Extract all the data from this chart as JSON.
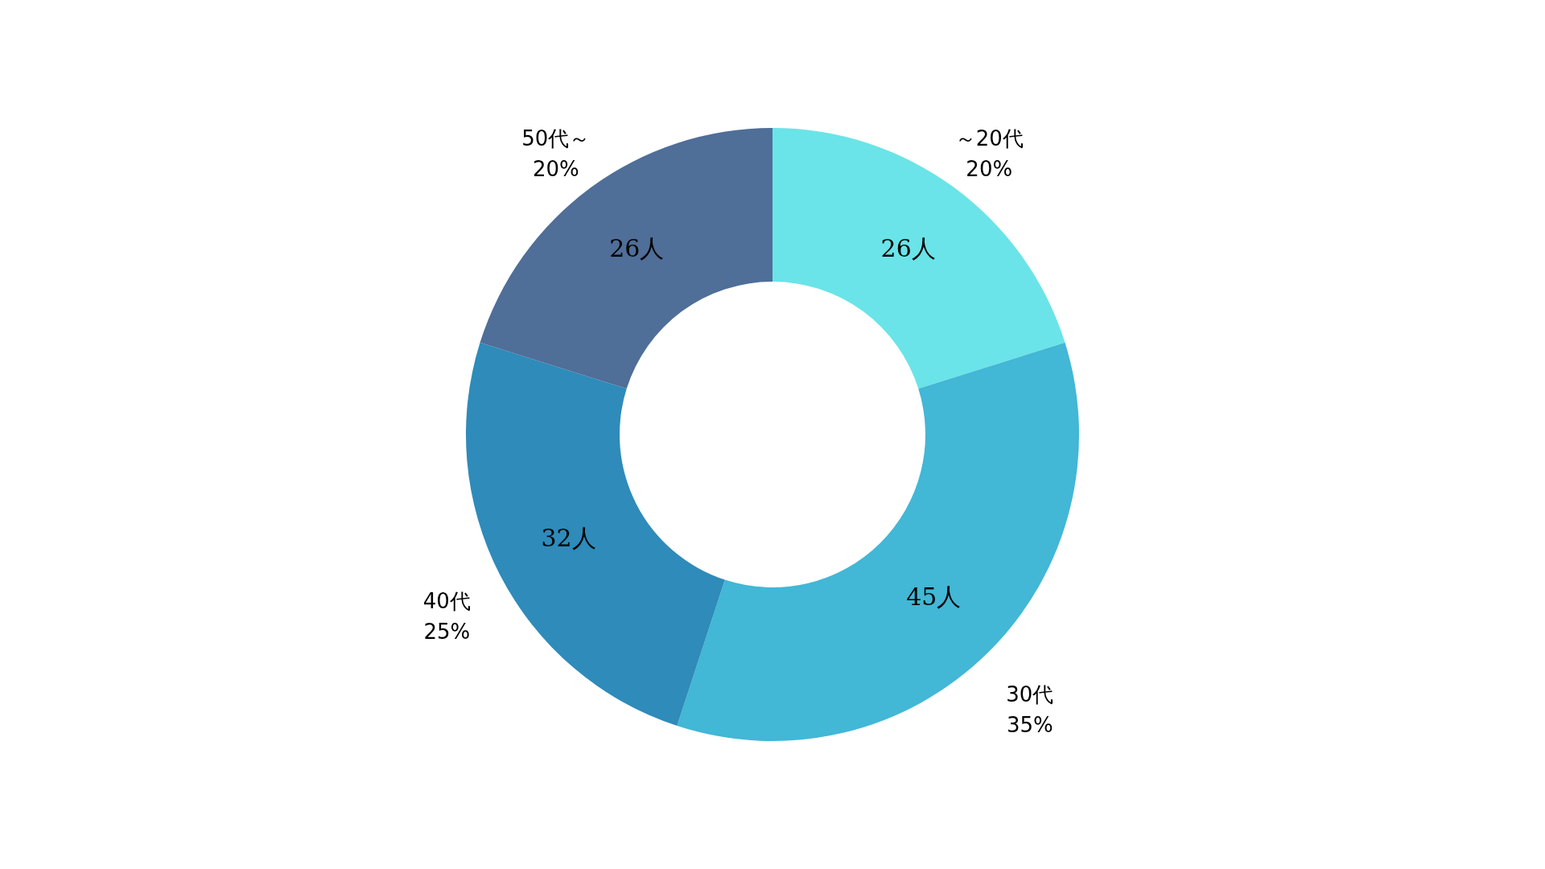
{
  "chart_data": {
    "type": "donut",
    "categories": [
      "～20代",
      "30代",
      "40代",
      "50代～"
    ],
    "values": [
      26,
      45,
      32,
      26
    ],
    "colors": [
      "#6ae4e8",
      "#42b7d6",
      "#2e8bba",
      "#4f6e98"
    ],
    "value_labels": [
      "26人",
      "45人",
      "32人",
      "26人"
    ],
    "annotations": [
      {
        "text": "20%",
        "x": "～20代"
      },
      {
        "text": "35%",
        "x": "30代"
      },
      {
        "text": "25%",
        "x": "40代"
      },
      {
        "text": "20%",
        "x": "50代～"
      }
    ]
  }
}
